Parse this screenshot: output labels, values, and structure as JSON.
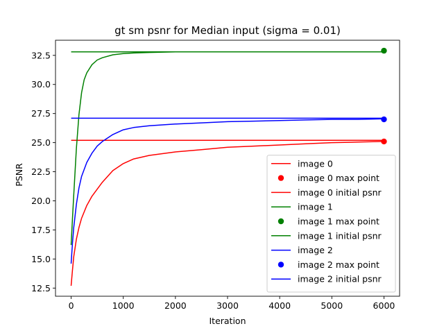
{
  "chart_data": {
    "type": "line",
    "title": "gt sm psnr for Median input (sigma = 0.01)",
    "xlabel": "Iteration",
    "ylabel": "PSNR",
    "xlim": [
      -300,
      6300
    ],
    "ylim": [
      11.8,
      33.8
    ],
    "xticks": [
      0,
      1000,
      2000,
      3000,
      4000,
      5000,
      6000
    ],
    "yticks": [
      12.5,
      15.0,
      17.5,
      20.0,
      22.5,
      25.0,
      27.5,
      30.0,
      32.5
    ],
    "xtick_labels": [
      "0",
      "1000",
      "2000",
      "3000",
      "4000",
      "5000",
      "6000"
    ],
    "ytick_labels": [
      "12.5",
      "15.0",
      "17.5",
      "20.0",
      "22.5",
      "25.0",
      "27.5",
      "30.0",
      "32.5"
    ],
    "grid": false,
    "legend_position": "lower-right",
    "series": [
      {
        "name": "image 0",
        "color": "#ff0000",
        "x": [
          0,
          25,
          50,
          100,
          150,
          200,
          300,
          400,
          500,
          600,
          800,
          1000,
          1200,
          1500,
          2000,
          2500,
          3000,
          3500,
          4000,
          4500,
          5000,
          5500,
          6000
        ],
        "y": [
          12.7,
          14.0,
          15.2,
          16.7,
          17.7,
          18.5,
          19.6,
          20.4,
          21.0,
          21.6,
          22.6,
          23.2,
          23.6,
          23.9,
          24.2,
          24.4,
          24.6,
          24.7,
          24.8,
          24.9,
          25.0,
          25.05,
          25.1
        ],
        "max_point": {
          "x": 6000,
          "y": 25.1
        },
        "initial_psnr": 25.2
      },
      {
        "name": "image 1",
        "color": "#008000",
        "x": [
          0,
          25,
          50,
          100,
          150,
          200,
          250,
          300,
          400,
          500,
          600,
          800,
          1000,
          1200,
          1500,
          2000,
          3000,
          4000,
          5000,
          6000
        ],
        "y": [
          16.2,
          18.4,
          20.5,
          24.5,
          27.4,
          29.3,
          30.4,
          31.0,
          31.7,
          32.1,
          32.3,
          32.55,
          32.65,
          32.7,
          32.75,
          32.8,
          32.8,
          32.8,
          32.8,
          32.8
        ],
        "max_point": {
          "x": 6000,
          "y": 32.9
        },
        "initial_psnr": 32.8
      },
      {
        "name": "image 2",
        "color": "#0000ff",
        "x": [
          0,
          25,
          50,
          100,
          150,
          200,
          300,
          400,
          500,
          600,
          800,
          1000,
          1200,
          1500,
          2000,
          2500,
          3000,
          3500,
          4000,
          4500,
          5000,
          5500,
          6000
        ],
        "y": [
          14.6,
          16.3,
          17.7,
          19.7,
          21.1,
          22.1,
          23.3,
          24.1,
          24.7,
          25.1,
          25.7,
          26.1,
          26.3,
          26.45,
          26.6,
          26.7,
          26.8,
          26.85,
          26.9,
          26.95,
          27.0,
          27.0,
          27.05
        ],
        "max_point": {
          "x": 6000,
          "y": 27.0
        },
        "initial_psnr": 27.1
      }
    ],
    "legend": [
      {
        "label": "image 0",
        "kind": "line",
        "color": "#ff0000"
      },
      {
        "label": "image 0 max point",
        "kind": "marker",
        "color": "#ff0000"
      },
      {
        "label": "image 0 initial psnr",
        "kind": "line",
        "color": "#ff0000"
      },
      {
        "label": "image 1",
        "kind": "line",
        "color": "#008000"
      },
      {
        "label": "image 1 max point",
        "kind": "marker",
        "color": "#008000"
      },
      {
        "label": "image 1 initial psnr",
        "kind": "line",
        "color": "#008000"
      },
      {
        "label": "image 2",
        "kind": "line",
        "color": "#0000ff"
      },
      {
        "label": "image 2 max point",
        "kind": "marker",
        "color": "#0000ff"
      },
      {
        "label": "image 2 initial psnr",
        "kind": "line",
        "color": "#0000ff"
      }
    ]
  }
}
